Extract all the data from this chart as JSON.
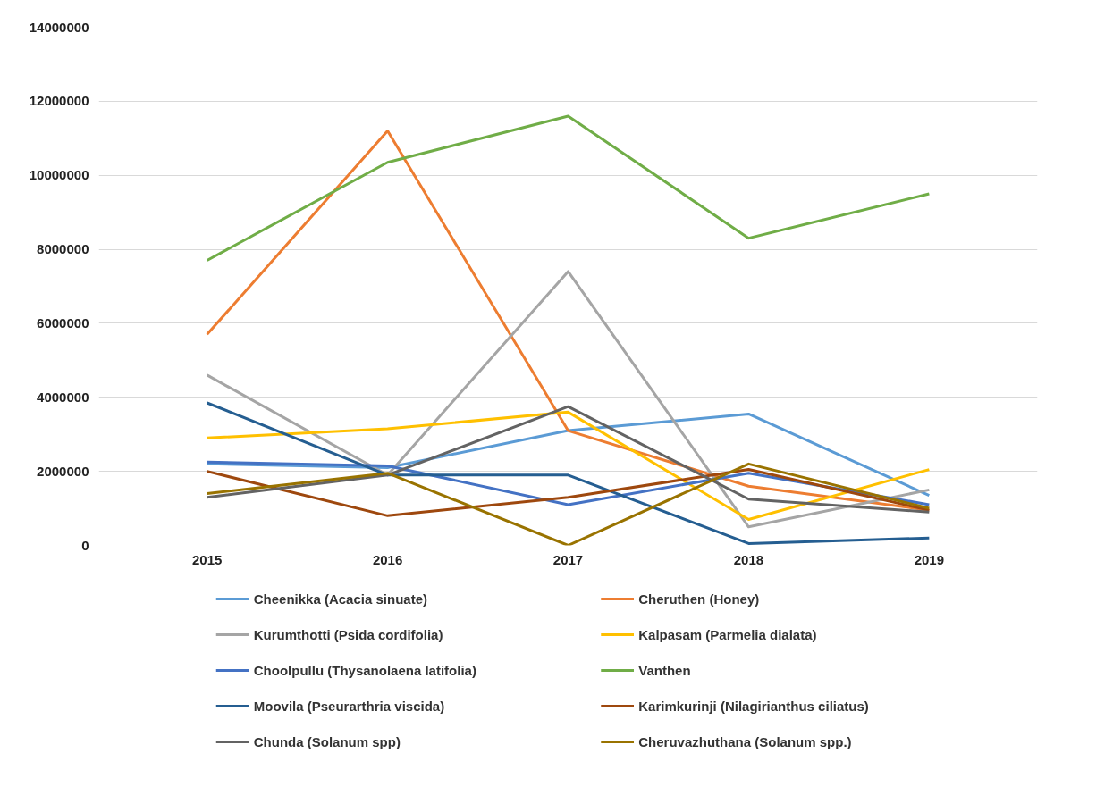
{
  "chart_data": {
    "type": "line",
    "categories": [
      "2015",
      "2016",
      "2017",
      "2018",
      "2019"
    ],
    "ylim": [
      0,
      14000000
    ],
    "yticks": [
      0,
      2000000,
      4000000,
      6000000,
      8000000,
      10000000,
      12000000,
      14000000
    ],
    "grid": "y",
    "legend": "bottom",
    "series": [
      {
        "name": "Cheenikka (Acacia sinuate)",
        "color": "#5b9bd5",
        "values": [
          2200000,
          2100000,
          3100000,
          3550000,
          1350000
        ]
      },
      {
        "name": "Cheruthen (Honey)",
        "color": "#ed7d31",
        "values": [
          5700000,
          11200000,
          3100000,
          1600000,
          950000
        ]
      },
      {
        "name": "Kurumthotti (Psida cordifolia)",
        "color": "#a5a5a5",
        "values": [
          4600000,
          1900000,
          7400000,
          500000,
          1500000
        ]
      },
      {
        "name": "Kalpasam (Parmelia dialata)",
        "color": "#ffc000",
        "values": [
          2900000,
          3150000,
          3600000,
          700000,
          2050000
        ]
      },
      {
        "name": "Choolpullu  (Thysanolaena latifolia)",
        "color": "#4472c4",
        "values": [
          2250000,
          2150000,
          1100000,
          1950000,
          1100000
        ]
      },
      {
        "name": "Vanthen",
        "color": "#70ad47",
        "values": [
          7700000,
          10350000,
          11600000,
          8300000,
          9500000
        ]
      },
      {
        "name": "Moovila (Pseurarthria viscida)",
        "color": "#255e91",
        "values": [
          3850000,
          1900000,
          1900000,
          50000,
          200000
        ]
      },
      {
        "name": "Karimkurinji (Nilagirianthus ciliatus)",
        "color": "#9e480e",
        "values": [
          2000000,
          800000,
          1300000,
          2050000,
          950000
        ]
      },
      {
        "name": "Chunda (Solanum spp)",
        "color": "#636363",
        "values": [
          1300000,
          1900000,
          3750000,
          1250000,
          900000
        ]
      },
      {
        "name": "Cheruvazhuthana (Solanum spp.)",
        "color": "#997300",
        "values": [
          1400000,
          1950000,
          0,
          2200000,
          1000000
        ]
      }
    ]
  }
}
